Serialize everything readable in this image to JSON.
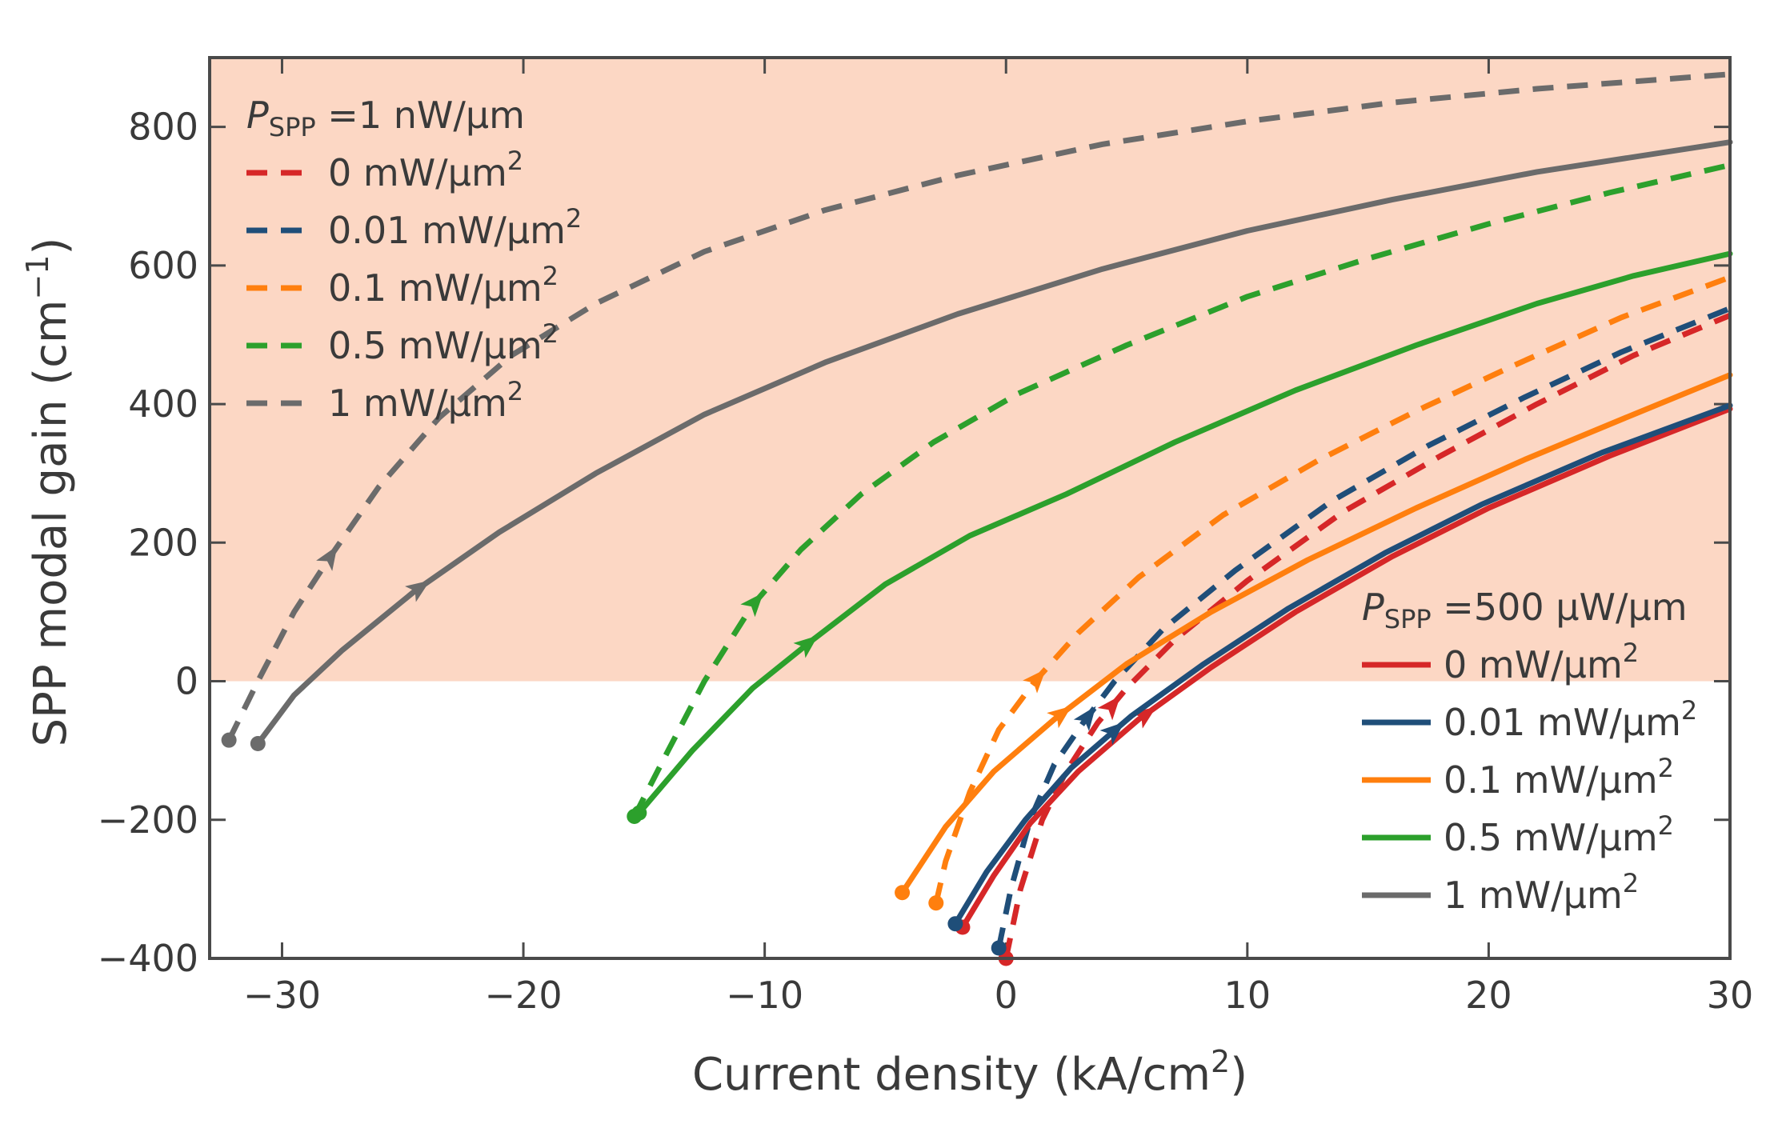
{
  "chart_data": {
    "type": "line",
    "xlabel": "Current density (kA/cm",
    "xlabel_sup": "2",
    "xlabel_end": ")",
    "ylabel": "SPP modal gain (cm",
    "ylabel_sup": "−1",
    "ylabel_end": ")",
    "xlim": [
      -33,
      30
    ],
    "ylim": [
      -400,
      900
    ],
    "xticks": [
      -30,
      -20,
      -10,
      0,
      10,
      20,
      30
    ],
    "xtick_labels": [
      "−30",
      "−20",
      "−10",
      "0",
      "10",
      "20",
      "30"
    ],
    "yticks": [
      -400,
      -200,
      0,
      200,
      400,
      600,
      800
    ],
    "ytick_labels": [
      "−400",
      "−200",
      "0",
      "200",
      "400",
      "600",
      "800"
    ],
    "gain_region": {
      "from": 0,
      "to": 900,
      "color": "#fcd7c4"
    },
    "legends": [
      {
        "position": "top-left",
        "title_p": "P",
        "title_sub": "SPP",
        "title_rest": " =1 nW/μm",
        "style": "dashed",
        "entries": [
          {
            "label": "0 mW/μm",
            "sup": "2",
            "color": "#d62728"
          },
          {
            "label": "0.01 mW/μm",
            "sup": "2",
            "color": "#1f4e79"
          },
          {
            "label": "0.1 mW/μm",
            "sup": "2",
            "color": "#ff7f0e"
          },
          {
            "label": "0.5 mW/μm",
            "sup": "2",
            "color": "#2ca02c"
          },
          {
            "label": "1 mW/μm",
            "sup": "2",
            "color": "#6b6b6b"
          }
        ]
      },
      {
        "position": "bottom-right",
        "title_p": "P",
        "title_sub": "SPP",
        "title_rest": " =500 μW/μm",
        "style": "solid",
        "entries": [
          {
            "label": "0 mW/μm",
            "sup": "2",
            "color": "#d62728"
          },
          {
            "label": "0.01 mW/μm",
            "sup": "2",
            "color": "#1f4e79"
          },
          {
            "label": "0.1 mW/μm",
            "sup": "2",
            "color": "#ff7f0e"
          },
          {
            "label": "0.5 mW/μm",
            "sup": "2",
            "color": "#2ca02c"
          },
          {
            "label": "1 mW/μm",
            "sup": "2",
            "color": "#6b6b6b"
          }
        ]
      }
    ],
    "series": [
      {
        "name": "1 nW/μm, 0 mW/μm2",
        "style": "dashed",
        "color": "#d62728",
        "x": [
          0.0,
          0.6,
          1.5,
          2.5,
          3.8,
          5.0,
          7.0,
          10.0,
          14.0,
          18.0,
          22.0,
          26.0,
          30.0
        ],
        "y": [
          -400,
          -300,
          -200,
          -130,
          -60,
          -10,
          60,
          145,
          245,
          325,
          400,
          470,
          528
        ],
        "arrow_x": 4.4
      },
      {
        "name": "1 nW/μm, 0.01 mW/μm2",
        "style": "dashed",
        "color": "#1f4e79",
        "x": [
          -0.3,
          0.2,
          1.0,
          2.0,
          3.2,
          4.5,
          6.5,
          9.5,
          13.5,
          17.5,
          21.5,
          25.5,
          30.0
        ],
        "y": [
          -385,
          -300,
          -200,
          -120,
          -60,
          0,
          75,
          160,
          260,
          340,
          410,
          475,
          538
        ],
        "arrow_x": 3.4
      },
      {
        "name": "1 nW/μm, 0.1 mW/μm2",
        "style": "dashed",
        "color": "#ff7f0e",
        "x": [
          -2.9,
          -2.5,
          -1.5,
          -0.3,
          1.2,
          3.0,
          5.5,
          9.0,
          13.0,
          17.0,
          21.0,
          25.5,
          30.0
        ],
        "y": [
          -320,
          -260,
          -160,
          -70,
          0,
          70,
          150,
          240,
          320,
          390,
          455,
          525,
          583
        ],
        "arrow_x": 1.3
      },
      {
        "name": "1 nW/μm, 0.5 mW/μm2",
        "style": "dashed",
        "color": "#2ca02c",
        "x": [
          -15.4,
          -14.0,
          -12.5,
          -10.5,
          -8.5,
          -6.0,
          -3.0,
          0.5,
          5.0,
          10.0,
          15.0,
          20.0,
          25.0,
          30.0
        ],
        "y": [
          -195,
          -100,
          0,
          110,
          190,
          270,
          345,
          415,
          485,
          555,
          610,
          660,
          705,
          745
        ],
        "arrow_x": -10.4
      },
      {
        "name": "1 nW/μm, 1 mW/μm2",
        "style": "dashed",
        "color": "#6b6b6b",
        "x": [
          -32.2,
          -31.0,
          -29.5,
          -28.0,
          -26.0,
          -23.5,
          -20.5,
          -17.0,
          -12.5,
          -7.5,
          -2.0,
          4.0,
          10.0,
          16.0,
          22.0,
          30.0
        ],
        "y": [
          -85,
          0,
          100,
          180,
          280,
          380,
          470,
          545,
          620,
          680,
          730,
          775,
          808,
          835,
          855,
          876
        ],
        "arrow_x": -28.0
      },
      {
        "name": "500 μW/μm, 0 mW/μm2",
        "style": "solid",
        "color": "#d62728",
        "x": [
          -1.8,
          -0.5,
          1.0,
          3.0,
          5.5,
          8.5,
          12.0,
          16.0,
          20.0,
          25.0,
          30.0
        ],
        "y": [
          -355,
          -280,
          -205,
          -130,
          -55,
          20,
          100,
          180,
          250,
          325,
          393
        ],
        "arrow_x": 5.8
      },
      {
        "name": "500 μW/μm, 0.01 mW/μm2",
        "style": "solid",
        "color": "#1f4e79",
        "x": [
          -2.1,
          -0.8,
          0.8,
          2.7,
          5.2,
          8.2,
          11.7,
          15.7,
          19.7,
          24.7,
          30.0
        ],
        "y": [
          -350,
          -275,
          -200,
          -125,
          -50,
          25,
          105,
          185,
          255,
          330,
          398
        ],
        "arrow_x": 4.5
      },
      {
        "name": "500 μW/μm, 0.1 mW/μm2",
        "style": "solid",
        "color": "#ff7f0e",
        "x": [
          -4.3,
          -2.5,
          -0.5,
          2.0,
          5.0,
          8.5,
          12.5,
          17.0,
          21.5,
          26.0,
          30.0
        ],
        "y": [
          -305,
          -210,
          -130,
          -55,
          25,
          100,
          175,
          250,
          320,
          385,
          442
        ],
        "arrow_x": 2.3
      },
      {
        "name": "500 μW/μm, 0.5 mW/μm2",
        "style": "solid",
        "color": "#2ca02c",
        "x": [
          -15.2,
          -13.0,
          -10.5,
          -8.0,
          -5.0,
          -1.5,
          2.5,
          7.0,
          12.0,
          17.0,
          22.0,
          26.0,
          30.0
        ],
        "y": [
          -190,
          -100,
          -10,
          60,
          140,
          210,
          270,
          345,
          420,
          485,
          545,
          585,
          617
        ],
        "arrow_x": -8.2
      },
      {
        "name": "500 μW/μm, 1 mW/μm2",
        "style": "solid",
        "color": "#6b6b6b",
        "x": [
          -31.0,
          -29.5,
          -27.5,
          -24.5,
          -21.0,
          -17.0,
          -12.5,
          -7.5,
          -2.0,
          4.0,
          10.0,
          16.0,
          22.0,
          30.0
        ],
        "y": [
          -90,
          -20,
          45,
          130,
          215,
          300,
          385,
          460,
          530,
          595,
          650,
          695,
          735,
          778
        ],
        "arrow_x": -24.3
      }
    ]
  }
}
